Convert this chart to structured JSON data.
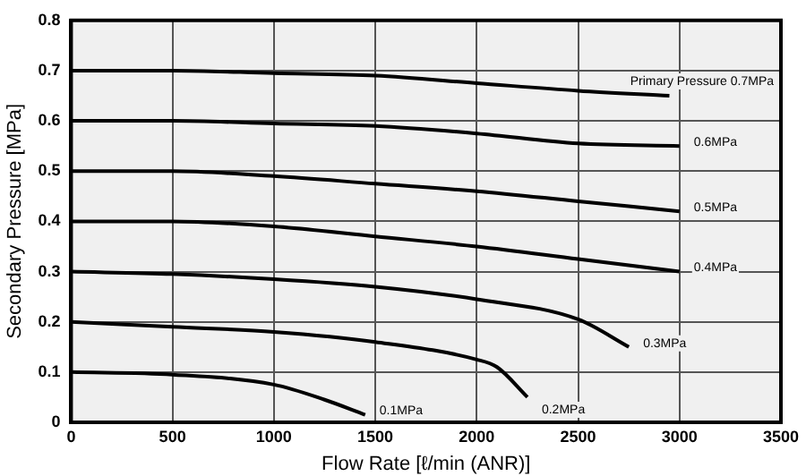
{
  "chart_data": {
    "type": "line",
    "xlabel": "Flow Rate [ℓ/min (ANR)]",
    "ylabel": "Secondary Pressure [MPa]",
    "xlim": [
      0,
      3500
    ],
    "xticks": [
      0,
      500,
      1000,
      1500,
      2000,
      2500,
      3000,
      3500
    ],
    "ylim": [
      0,
      0.8
    ],
    "yticks": [
      0,
      0.1,
      0.2,
      0.3,
      0.4,
      0.5,
      0.6,
      0.7,
      0.8
    ],
    "grid": true,
    "legend": false,
    "marker": "none",
    "line_style": "solid",
    "series": [
      {
        "name": "Primary Pressure 0.7MPa",
        "color": "#000000",
        "x": [
          0,
          500,
          1000,
          1500,
          2000,
          2500,
          2950
        ],
        "values": [
          0.7,
          0.7,
          0.695,
          0.69,
          0.675,
          0.66,
          0.65
        ]
      },
      {
        "name": "0.6MPa",
        "color": "#000000",
        "x": [
          0,
          500,
          1000,
          1500,
          2000,
          2500,
          3000
        ],
        "values": [
          0.6,
          0.6,
          0.595,
          0.59,
          0.575,
          0.555,
          0.55
        ]
      },
      {
        "name": "0.5MPa",
        "color": "#000000",
        "x": [
          0,
          500,
          1000,
          1500,
          2000,
          2500,
          3000
        ],
        "values": [
          0.5,
          0.5,
          0.49,
          0.475,
          0.46,
          0.44,
          0.42
        ]
      },
      {
        "name": "0.4MPa",
        "color": "#000000",
        "x": [
          0,
          500,
          1000,
          1500,
          2000,
          2500,
          3000
        ],
        "values": [
          0.4,
          0.4,
          0.39,
          0.37,
          0.35,
          0.325,
          0.3
        ]
      },
      {
        "name": "0.3MPa",
        "color": "#000000",
        "x": [
          0,
          500,
          1000,
          1500,
          2000,
          2500,
          2750
        ],
        "values": [
          0.3,
          0.295,
          0.285,
          0.27,
          0.245,
          0.205,
          0.15
        ]
      },
      {
        "name": "0.2MPa",
        "color": "#000000",
        "x": [
          0,
          500,
          1000,
          1500,
          2000,
          2100,
          2250
        ],
        "values": [
          0.2,
          0.19,
          0.18,
          0.16,
          0.125,
          0.11,
          0.05
        ]
      },
      {
        "name": "0.1MPa",
        "color": "#000000",
        "x": [
          0,
          500,
          1000,
          1250,
          1450
        ],
        "values": [
          0.1,
          0.095,
          0.075,
          0.045,
          0.015
        ]
      }
    ]
  }
}
